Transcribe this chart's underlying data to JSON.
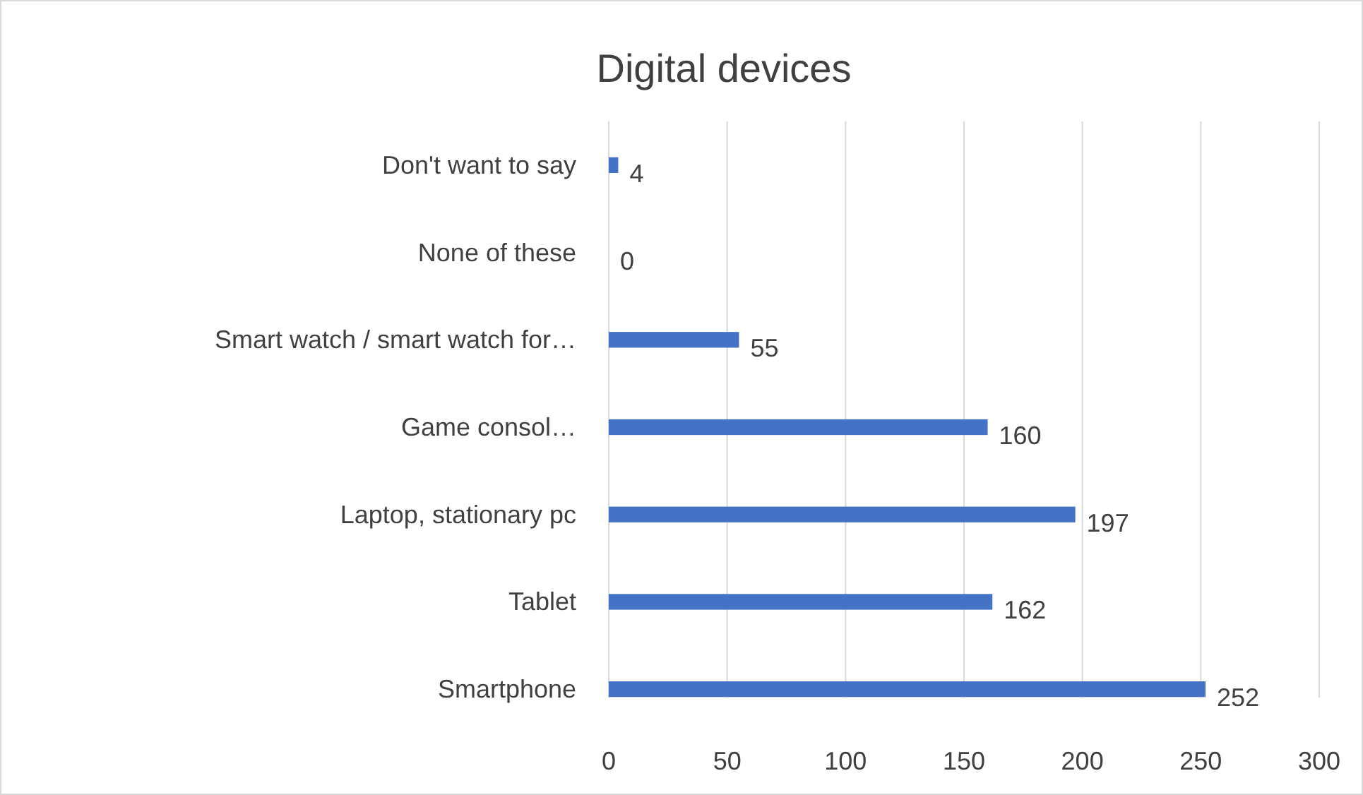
{
  "chart_data": {
    "type": "bar",
    "orientation": "horizontal",
    "title": "Digital devices",
    "categories": [
      "Don't want to say",
      "None of these",
      "Smart watch / smart watch for…",
      "Game consol…",
      "Laptop, stationary pc",
      "Tablet",
      "Smartphone"
    ],
    "values": [
      4,
      0,
      55,
      160,
      197,
      162,
      252
    ],
    "color": "#4472c4",
    "xlim": [
      0,
      300
    ],
    "xticks": [
      0,
      50,
      100,
      150,
      200,
      250,
      300
    ],
    "grid": "x",
    "data_labels": true
  }
}
